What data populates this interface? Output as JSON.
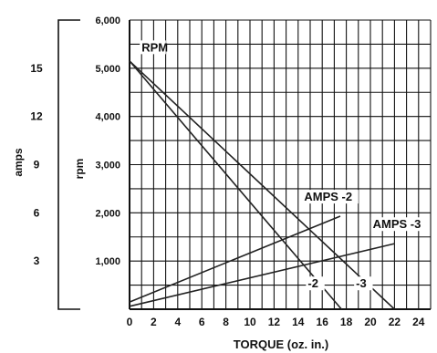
{
  "chart_data": {
    "type": "line",
    "title": "",
    "xlabel": "TORQUE (oz. in.)",
    "ylabel_rpm": "rpm",
    "ylabel_amps": "amps",
    "x_ticks": [
      "0",
      "2",
      "4",
      "6",
      "8",
      "10",
      "12",
      "14",
      "16",
      "18",
      "20",
      "22",
      "24"
    ],
    "rpm_ticks": [
      "6,000",
      "5,000",
      "4,000",
      "3,000",
      "2,000",
      "1,000"
    ],
    "amps_ticks": [
      "15",
      "12",
      "9",
      "6",
      "3"
    ],
    "xlim": [
      0,
      24
    ],
    "rpm_lim": [
      0,
      6000
    ],
    "amps_lim": [
      0,
      18
    ],
    "grid": true,
    "series": [
      {
        "name": "RPM",
        "axis": "rpm",
        "points": [
          [
            0,
            5150
          ],
          [
            17.6,
            0
          ]
        ]
      },
      {
        "name": "RPM",
        "axis": "rpm",
        "points": [
          [
            0,
            5150
          ],
          [
            22,
            0
          ]
        ]
      },
      {
        "name": "AMPS -2",
        "axis": "rpm",
        "points": [
          [
            0,
            150
          ],
          [
            17.5,
            1930
          ]
        ]
      },
      {
        "name": "AMPS -3",
        "axis": "rpm",
        "points": [
          [
            0,
            60
          ],
          [
            22,
            1360
          ]
        ]
      }
    ],
    "annotations": [
      {
        "text": "RPM",
        "x": 1.0,
        "y": 5350
      },
      {
        "text": "AMPS -2",
        "x": 14.5,
        "y": 2250
      },
      {
        "text": "AMPS -3",
        "x": 20.2,
        "y": 1680
      },
      {
        "text": "-2",
        "x": 14.8,
        "y": 450
      },
      {
        "text": "-3",
        "x": 18.8,
        "y": 450
      }
    ]
  }
}
